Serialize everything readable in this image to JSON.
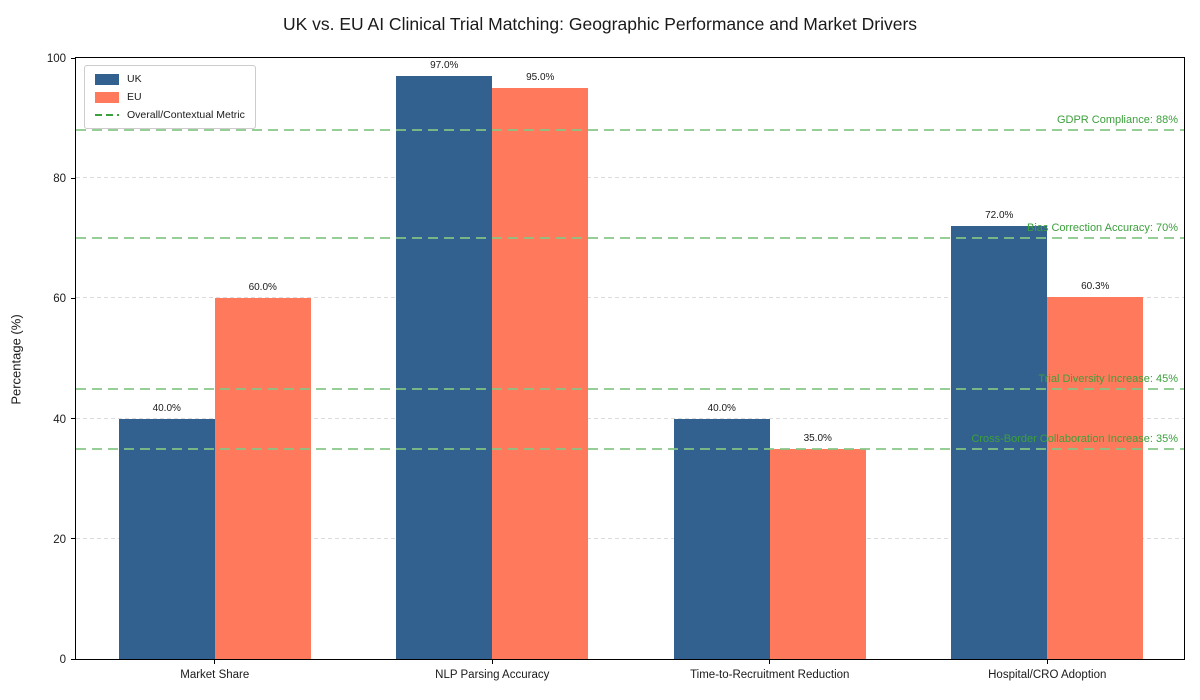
{
  "title": "UK vs. EU AI Clinical Trial Matching: Geographic Performance and Market Drivers",
  "chart_data": {
    "type": "bar",
    "title": "UK vs. EU AI Clinical Trial Matching: Geographic Performance and Market Drivers",
    "xlabel": "",
    "ylabel": "Percentage (%)",
    "ylim": [
      0,
      100
    ],
    "yticks": [
      0,
      20,
      40,
      60,
      80,
      100
    ],
    "grid": "horizontal-dashed",
    "legend_position": "upper-left",
    "categories": [
      "Market Share",
      "NLP Parsing Accuracy",
      "Time-to-Recruitment Reduction",
      "Hospital/CRO Adoption"
    ],
    "series": [
      {
        "name": "UK",
        "color": "#32608F",
        "values": [
          40.0,
          97.0,
          40.0,
          72.0
        ]
      },
      {
        "name": "EU",
        "color": "#FF7A5C",
        "values": [
          60.0,
          95.0,
          35.0,
          60.3
        ]
      }
    ],
    "bar_labels": [
      [
        "40.0%",
        "97.0%",
        "40.0%",
        "72.0%"
      ],
      [
        "60.0%",
        "95.0%",
        "35.0%",
        "60.3%"
      ]
    ],
    "context_lines": [
      {
        "label": "GDPR Compliance: 88%",
        "value": 88
      },
      {
        "label": "Bias Correction Accuracy: 70%",
        "value": 70
      },
      {
        "label": "Trial Diversity Increase: 45%",
        "value": 45
      },
      {
        "label": "Cross-Border Collaboration Increase: 35%",
        "value": 35
      }
    ],
    "context_line_color": "#85C585",
    "context_text_color": "#3CA03C",
    "legend": [
      "UK",
      "EU",
      "Overall/Contextual Metric"
    ],
    "colors": {
      "uk": "#32608F",
      "eu": "#FF7A5C",
      "context": "#3CA03C",
      "grid": "#dcdcdc"
    }
  }
}
